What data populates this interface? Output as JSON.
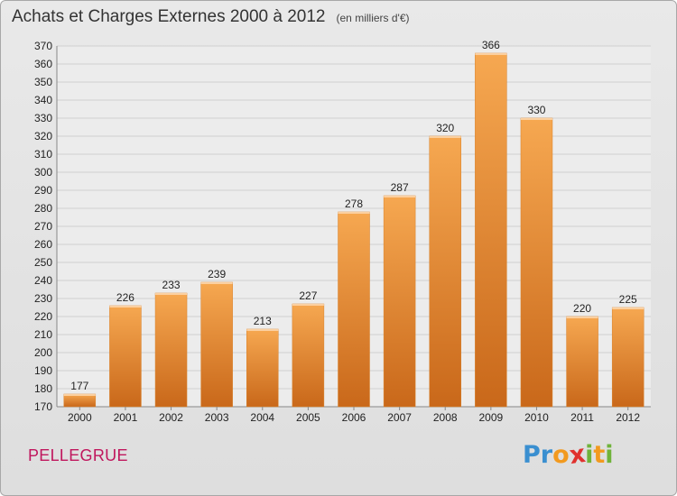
{
  "title": "Achats et Charges Externes 2000 à 2012",
  "unit_label": "(en milliers d'€)",
  "city": "PELLEGRUE",
  "logo": {
    "text": "Proxiti",
    "letters": [
      "P",
      "r",
      "o",
      "x",
      "i",
      "t",
      "i"
    ],
    "colors": [
      "#3a8fd0",
      "#3a8fd0",
      "#f29a1f",
      "#e0312e",
      "#6fb33a",
      "#f29a1f",
      "#6fb33a"
    ]
  },
  "colors": {
    "bar": "#f29a45",
    "bar_dark": "#c9681a",
    "grid": "#cfcfcf",
    "axis": "#888888",
    "city": "#c0165d"
  },
  "chart_data": {
    "type": "bar",
    "categories": [
      "2000",
      "2001",
      "2002",
      "2003",
      "2004",
      "2005",
      "2006",
      "2007",
      "2008",
      "2009",
      "2010",
      "2011",
      "2012"
    ],
    "values": [
      177,
      226,
      233,
      239,
      213,
      227,
      278,
      287,
      320,
      366,
      330,
      220,
      225
    ],
    "title": "Achats et Charges Externes 2000 à 2012",
    "ylabel": "",
    "xlabel": "",
    "ylim": [
      170,
      370
    ],
    "yticks": [
      170,
      180,
      190,
      200,
      210,
      220,
      230,
      240,
      250,
      260,
      270,
      280,
      290,
      300,
      310,
      320,
      330,
      340,
      350,
      360,
      370
    ],
    "grid": true,
    "data_labels": true
  }
}
